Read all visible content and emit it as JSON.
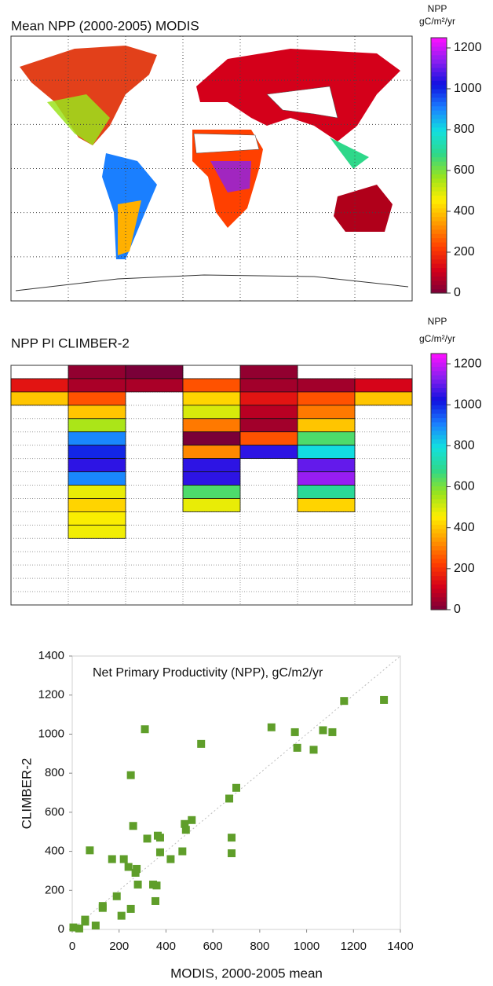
{
  "chart_data": [
    {
      "type": "map",
      "title": "Mean NPP (2000-2005) MODIS",
      "colorbar": {
        "title": "NPP",
        "unit": "gC/m²/yr",
        "clim": [
          0,
          1250
        ],
        "ticks": [
          0,
          200,
          400,
          600,
          800,
          1000,
          1200
        ],
        "colormap": [
          "#7a0038",
          "#d4001a",
          "#ff4000",
          "#ff9900",
          "#ffee00",
          "#9be31c",
          "#2ed88a",
          "#12e0e0",
          "#1a7fff",
          "#1010e0",
          "#8a1ff0",
          "#ff10ff"
        ]
      }
    },
    {
      "type": "gridmap",
      "title": "NPP PI CLIMBER-2",
      "colorbar": {
        "title": "NPP",
        "unit": "gC/m²/yr",
        "clim": [
          0,
          1250
        ],
        "ticks": [
          0,
          200,
          400,
          600,
          800,
          1000,
          1200
        ],
        "colormap": [
          "#7a0038",
          "#d4001a",
          "#ff4000",
          "#ff9900",
          "#ffee00",
          "#9be31c",
          "#2ed88a",
          "#12e0e0",
          "#1a7fff",
          "#1010e0",
          "#8a1ff0",
          "#ff10ff"
        ]
      },
      "rows": [
        [
          null,
          30,
          0,
          null,
          30,
          null,
          null
        ],
        [
          150,
          60,
          60,
          250,
          50,
          50,
          120
        ],
        [
          400,
          250,
          null,
          420,
          150,
          250,
          400
        ],
        [
          null,
          400,
          null,
          500,
          80,
          300,
          null
        ],
        [
          null,
          550,
          null,
          300,
          50,
          400,
          null
        ],
        [
          null,
          900,
          null,
          0,
          250,
          650,
          null
        ],
        [
          null,
          1000,
          null,
          320,
          1050,
          800,
          null
        ],
        [
          null,
          1050,
          null,
          1050,
          null,
          1100,
          null
        ],
        [
          null,
          900,
          null,
          1050,
          null,
          1150,
          null
        ],
        [
          null,
          480,
          null,
          650,
          null,
          700,
          null
        ],
        [
          null,
          420,
          null,
          480,
          null,
          420,
          null
        ],
        [
          null,
          460,
          null,
          null,
          null,
          null,
          null
        ],
        [
          null,
          470,
          null,
          null,
          null,
          null,
          null
        ]
      ]
    },
    {
      "type": "scatter",
      "annotation": "Net Primary Productivity (NPP), gC/m2/yr",
      "xlabel": "MODIS, 2000-2005 mean",
      "ylabel": "CLIMBER-2",
      "xlim": [
        0,
        1400
      ],
      "ylim": [
        0,
        1400
      ],
      "xticks": [
        0,
        200,
        400,
        600,
        800,
        1000,
        1200,
        1400
      ],
      "yticks": [
        0,
        200,
        400,
        600,
        800,
        1000,
        1200,
        1400
      ],
      "color": "#5f9e2a",
      "x": [
        5,
        30,
        55,
        55,
        100,
        75,
        130,
        130,
        170,
        190,
        210,
        220,
        240,
        250,
        250,
        260,
        270,
        275,
        280,
        310,
        320,
        345,
        355,
        360,
        365,
        375,
        375,
        420,
        470,
        480,
        485,
        510,
        550,
        670,
        680,
        680,
        700,
        850,
        950,
        960,
        1030,
        1070,
        1110,
        1160,
        1330
      ],
      "y": [
        10,
        5,
        40,
        50,
        20,
        405,
        110,
        120,
        360,
        170,
        70,
        360,
        320,
        790,
        105,
        530,
        290,
        310,
        230,
        1025,
        465,
        230,
        145,
        225,
        480,
        395,
        470,
        360,
        400,
        540,
        510,
        560,
        950,
        670,
        470,
        390,
        725,
        1035,
        1010,
        930,
        920,
        1020,
        1010,
        1170,
        1175
      ]
    }
  ]
}
